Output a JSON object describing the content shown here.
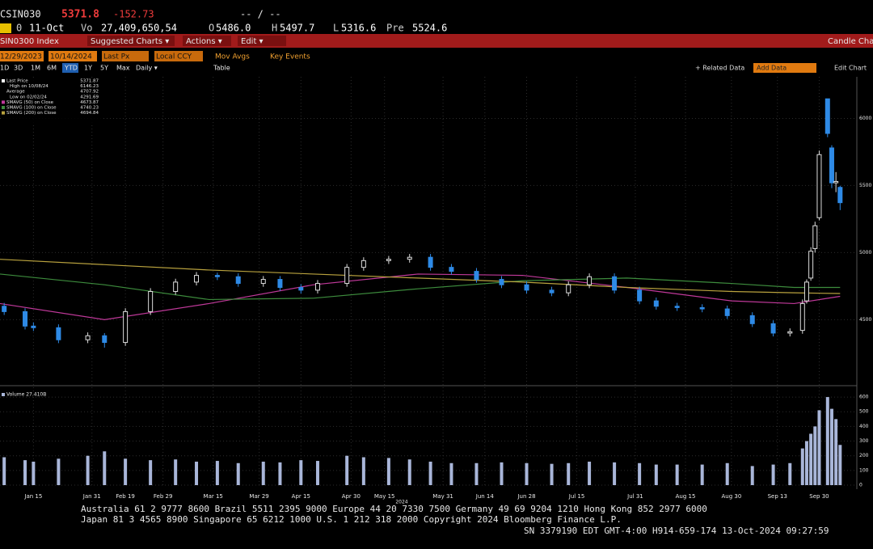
{
  "header": {
    "ticker": "CSIN030",
    "last": "5371.8",
    "change": "-152.73",
    "bid_ask": "-- / --",
    "row2": [
      "0",
      "11-Oct",
      "Vo",
      "27,409,650,54",
      "O",
      "5486.0",
      "H",
      "5497.7",
      "L",
      "5316.6",
      "Pre",
      "5524.6"
    ],
    "menu": [
      "SIN0300 Index",
      "Suggested Charts ▾",
      "Actions ▾",
      "Edit ▾",
      "Candle Chart"
    ],
    "settings": [
      "12/29/2023",
      "10/14/2024",
      "Last Px",
      "Local CCY",
      "Mov Avgs",
      "Key Events"
    ],
    "periods": [
      "1D",
      "3D",
      "1M",
      "6M",
      "YTD",
      "1Y",
      "5Y",
      "Max",
      "Daily ▾",
      "Table"
    ],
    "tools": [
      "+ Related Data",
      "Add Data",
      "Edit Chart"
    ]
  },
  "footer": [
    "Australia 61 2 9777 8600 Brazil 5511 2395 9000 Europe 44 20 7330 7500 Germany 49 69 9204 1210 Hong Kong 852 2977 6000",
    "Japan 81 3 4565 8900       Singapore 65 6212 1000       U.S. 1 212 318 2000           Copyright 2024 Bloomberg Finance L.P.",
    "SN 3379190 EDT  GMT-4:00 H914-659-174 13-Oct-2024 09:27:59"
  ],
  "chart_data": [
    {
      "type": "candlestick",
      "x_label": "2024",
      "x": [
        1,
        6,
        8,
        14,
        21,
        25,
        30,
        36,
        42,
        47,
        52,
        57,
        63,
        67,
        72,
        76,
        83,
        87,
        93,
        98,
        103,
        108,
        114,
        120,
        126,
        132,
        136,
        141,
        147,
        153,
        157,
        162,
        168,
        174,
        180,
        185,
        189,
        192,
        193,
        194,
        195,
        196,
        198,
        199,
        200,
        201
      ],
      "open": [
        4600,
        4560,
        4452,
        4440,
        4350,
        4380,
        4330,
        4560,
        4710,
        4780,
        4830,
        4820,
        4770,
        4800,
        4740,
        4720,
        4770,
        4890,
        4940,
        4950,
        4965,
        4890,
        4860,
        4800,
        4760,
        4720,
        4700,
        4760,
        4820,
        4720,
        4640,
        4600,
        4590,
        4580,
        4530,
        4470,
        4400,
        4420,
        4640,
        4810,
        5030,
        5260,
        6146,
        5780,
        5520,
        5486
      ],
      "high": [
        4625,
        4585,
        4480,
        4465,
        4405,
        4400,
        4585,
        4735,
        4805,
        4855,
        4850,
        4845,
        4825,
        4825,
        4765,
        4795,
        4915,
        4965,
        4975,
        4990,
        4990,
        4915,
        4885,
        4825,
        4785,
        4745,
        4785,
        4845,
        4845,
        4745,
        4665,
        4625,
        4615,
        4605,
        4555,
        4495,
        4435,
        4650,
        4800,
        5040,
        5230,
        5760,
        6146.23,
        5800,
        5600,
        5497.7
      ],
      "low": [
        4535,
        4427,
        4415,
        4325,
        4325,
        4291.69,
        4305,
        4535,
        4685,
        4755,
        4795,
        4745,
        4745,
        4715,
        4695,
        4695,
        4745,
        4865,
        4915,
        4925,
        4865,
        4835,
        4775,
        4735,
        4695,
        4675,
        4675,
        4735,
        4695,
        4615,
        4575,
        4565,
        4555,
        4505,
        4445,
        4375,
        4375,
        4395,
        4620,
        4790,
        5000,
        5240,
        5860,
        5480,
        5450,
        5316.6
      ],
      "close": [
        4560,
        4452,
        4440,
        4350,
        4380,
        4330,
        4560,
        4710,
        4780,
        4830,
        4820,
        4770,
        4800,
        4740,
        4720,
        4770,
        4890,
        4940,
        4950,
        4965,
        4890,
        4860,
        4800,
        4760,
        4720,
        4700,
        4760,
        4820,
        4720,
        4640,
        4600,
        4590,
        4580,
        4530,
        4470,
        4400,
        4410,
        4620,
        4780,
        5010,
        5200,
        5730,
        5888,
        5520,
        5530,
        5371.87
      ],
      "up_color": "#dddddd",
      "down_color": "#2e8ae6",
      "series": [
        {
          "name": "SMAVG (50) on Close",
          "color": "#c0399a",
          "x": [
            0,
            25,
            50,
            75,
            100,
            125,
            150,
            175,
            190,
            201
          ],
          "values": [
            4620,
            4500,
            4620,
            4760,
            4840,
            4830,
            4740,
            4640,
            4620,
            4673.87
          ]
        },
        {
          "name": "SMAVG (100) on Close",
          "color": "#3d8c3d",
          "x": [
            0,
            25,
            50,
            75,
            100,
            125,
            150,
            175,
            190,
            201
          ],
          "values": [
            4840,
            4760,
            4650,
            4660,
            4730,
            4790,
            4810,
            4770,
            4740,
            4740.23
          ]
        },
        {
          "name": "SMAVG (200) on Close",
          "color": "#b9a23e",
          "x": [
            0,
            25,
            50,
            75,
            100,
            125,
            150,
            175,
            190,
            201
          ],
          "values": [
            4950,
            4910,
            4870,
            4840,
            4810,
            4780,
            4740,
            4710,
            4700,
            4694.84
          ]
        }
      ],
      "legend": [
        {
          "label": "Last Price"
        },
        {
          "label": "High on 10/08/24"
        },
        {
          "label": "Average",
          "value": 4707.92
        },
        {
          "label": "Low on 02/02/24"
        }
      ],
      "xlim": [
        0,
        205
      ],
      "ylim": [
        4020,
        6310
      ],
      "yticks": [
        4500,
        5000,
        5500,
        6000
      ],
      "xticks": [
        {
          "value": 8,
          "label": "Jan 15"
        },
        {
          "value": 22,
          "label": "Jan 31"
        },
        {
          "value": 30,
          "label": "Feb 19"
        },
        {
          "value": 39,
          "label": "Feb 29"
        },
        {
          "value": 51,
          "label": "Mar 15"
        },
        {
          "value": 62,
          "label": "Mar 29"
        },
        {
          "value": 72,
          "label": "Apr 15"
        },
        {
          "value": 84,
          "label": "Apr 30"
        },
        {
          "value": 92,
          "label": "May 15"
        },
        {
          "value": 106,
          "label": "May 31"
        },
        {
          "value": 116,
          "label": "Jun 14"
        },
        {
          "value": 126,
          "label": "Jun 28"
        },
        {
          "value": 138,
          "label": "Jul 15"
        },
        {
          "value": 152,
          "label": "Jul 31"
        },
        {
          "value": 164,
          "label": "Aug 15"
        },
        {
          "value": 175,
          "label": "Aug 30"
        },
        {
          "value": 186,
          "label": "Sep 13"
        },
        {
          "value": 196,
          "label": "Sep 30"
        }
      ],
      "grid": true
    },
    {
      "type": "bar",
      "title": "Volume 27.410B",
      "color": "#a9b6d9",
      "x": [
        1,
        6,
        8,
        14,
        21,
        25,
        30,
        36,
        42,
        47,
        52,
        57,
        63,
        67,
        72,
        76,
        83,
        87,
        93,
        98,
        103,
        108,
        114,
        120,
        126,
        132,
        136,
        141,
        147,
        153,
        157,
        162,
        168,
        174,
        180,
        185,
        189,
        192,
        193,
        194,
        195,
        196,
        198,
        199,
        200,
        201
      ],
      "values": [
        190,
        170,
        160,
        180,
        200,
        230,
        180,
        170,
        175,
        160,
        165,
        150,
        160,
        155,
        170,
        165,
        200,
        190,
        185,
        175,
        160,
        150,
        150,
        155,
        150,
        145,
        150,
        160,
        155,
        150,
        140,
        140,
        140,
        150,
        130,
        140,
        150,
        250,
        300,
        350,
        400,
        510,
        600,
        520,
        450,
        274
      ],
      "xlim": [
        0,
        205
      ],
      "ylim": [
        0,
        650
      ],
      "yticks": [
        0,
        100,
        200,
        300,
        400,
        500,
        600
      ],
      "grid": true
    }
  ]
}
